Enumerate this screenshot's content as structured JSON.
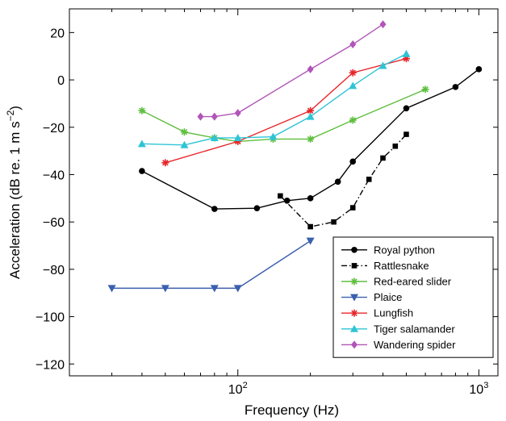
{
  "chart_data": {
    "type": "line",
    "xlabel": "Frequency (Hz)",
    "ylabel_parts": [
      "Acceleration (dB re. 1 m s",
      "−2",
      ")"
    ],
    "x_scale": "log",
    "xlim": [
      20,
      1200
    ],
    "ylim": [
      -125,
      30
    ],
    "y_ticks": [
      -120,
      -100,
      -80,
      -60,
      -40,
      -20,
      0,
      20
    ],
    "y_tick_labels": [
      "−120",
      "−100",
      "−80",
      "−60",
      "−40",
      "−20",
      "0",
      "20"
    ],
    "x_ticks": [
      100,
      1000
    ],
    "x_tick_labels": [
      {
        "base": "10",
        "exp": "2"
      },
      {
        "base": "10",
        "exp": "3"
      }
    ],
    "grid": false,
    "legend_position": "bottom-right",
    "series": [
      {
        "name": "Royal python",
        "color": "#000000",
        "marker": "circle",
        "dash": "solid",
        "x": [
          40,
          80,
          120,
          160,
          200,
          260,
          300,
          500,
          800,
          1000
        ],
        "y": [
          -38.5,
          -54.5,
          -54.2,
          -51,
          -50,
          -43,
          -34.5,
          -12,
          -3,
          4.5
        ]
      },
      {
        "name": "Rattlesnake",
        "color": "#000000",
        "marker": "square",
        "dash": "dashdot",
        "x": [
          150,
          200,
          250,
          300,
          350,
          400,
          450,
          500
        ],
        "y": [
          -49,
          -62,
          -60,
          -54,
          -42,
          -33,
          -28,
          -23
        ]
      },
      {
        "name": "Red-eared slider",
        "color": "#5fbf3f",
        "marker": "asterisk",
        "dash": "solid",
        "x": [
          40,
          60,
          80,
          100,
          140,
          200,
          300,
          600
        ],
        "y": [
          -13,
          -22,
          -24.5,
          -26,
          -25,
          -25,
          -17,
          -4
        ]
      },
      {
        "name": "Plaice",
        "color": "#3a5fae",
        "marker": "triangle-down",
        "dash": "solid",
        "x": [
          30,
          50,
          80,
          100,
          200
        ],
        "y": [
          -88,
          -88,
          -88,
          -88,
          -68
        ]
      },
      {
        "name": "Lungfish",
        "color": "#e8262a",
        "marker": "asterisk",
        "dash": "solid",
        "x": [
          50,
          100,
          200,
          300,
          500
        ],
        "y": [
          -35,
          -26,
          -13,
          3,
          9
        ]
      },
      {
        "name": "Tiger salamander",
        "color": "#2ec4d6",
        "marker": "triangle-up",
        "dash": "solid",
        "x": [
          40,
          60,
          80,
          100,
          140,
          200,
          300,
          400,
          500
        ],
        "y": [
          -27,
          -27.5,
          -24.5,
          -24.5,
          -24,
          -15.5,
          -2.5,
          6,
          11
        ]
      },
      {
        "name": "Wandering spider",
        "color": "#b155b8",
        "marker": "diamond",
        "dash": "solid",
        "x": [
          70,
          80,
          100,
          200,
          300,
          400
        ],
        "y": [
          -15.5,
          -15.5,
          -14,
          4.5,
          15,
          23.5
        ]
      }
    ]
  }
}
